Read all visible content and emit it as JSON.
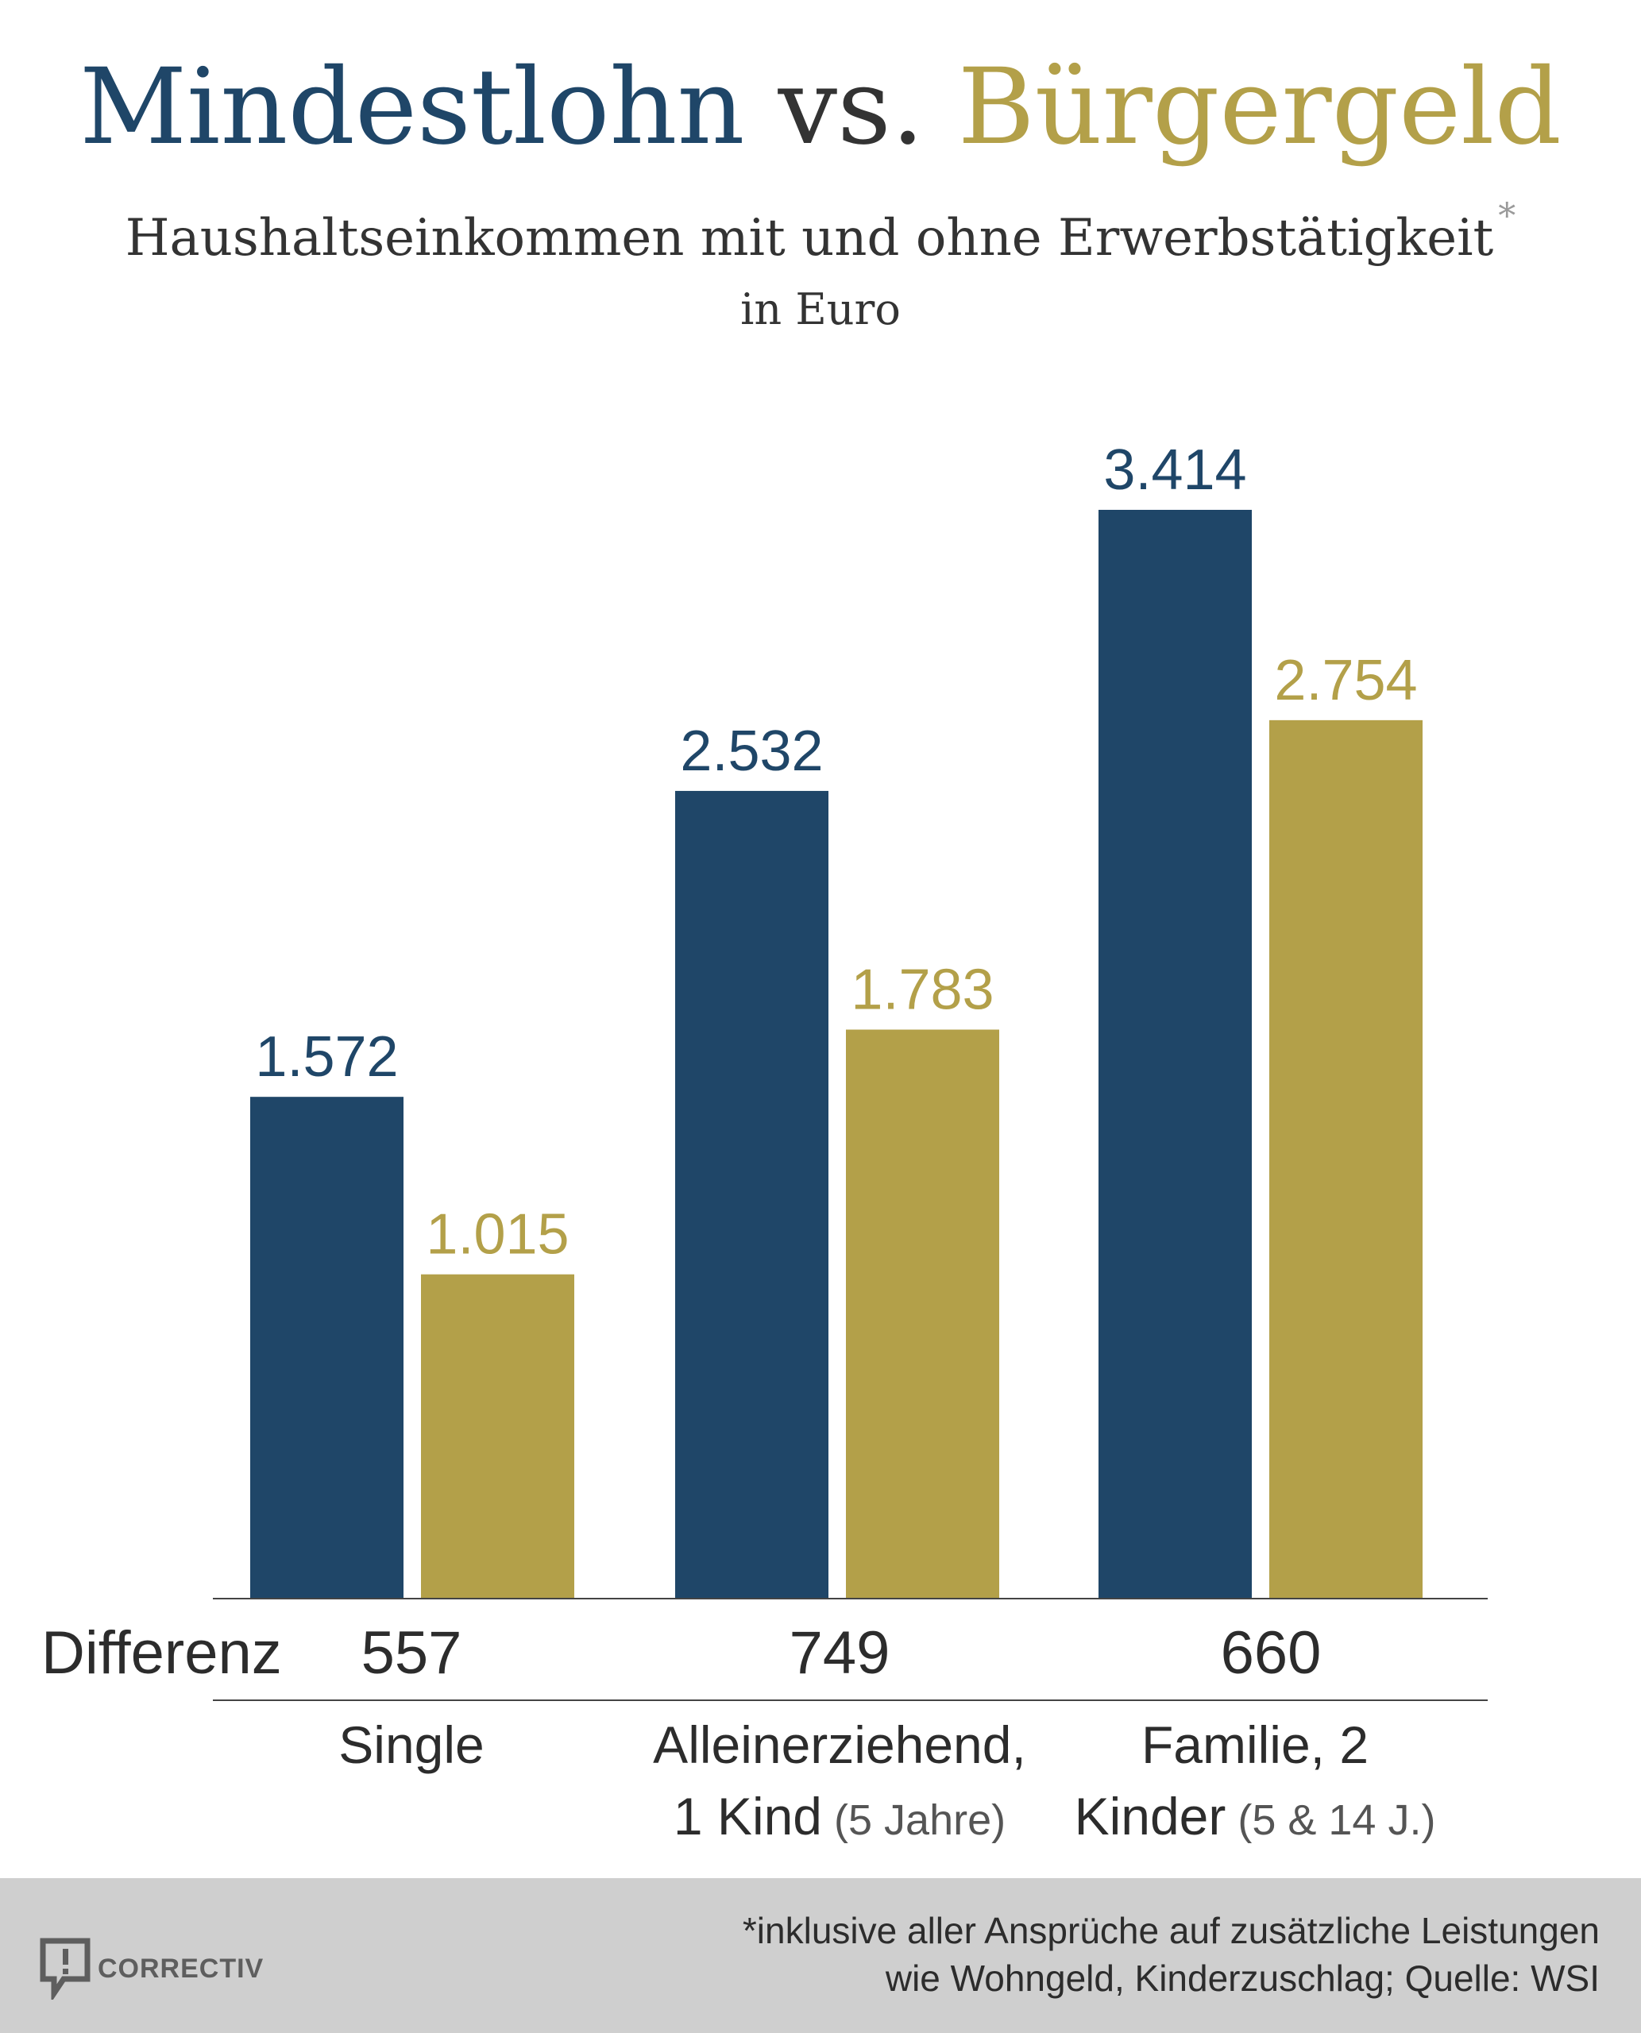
{
  "header": {
    "title_part1": "Mindestlohn",
    "title_part2": "vs.",
    "title_part3": "Bürgergeld",
    "subtitle": "Haushaltseinkommen mit und ohne Erwerbstätigkeit",
    "subtitle_mark": "*",
    "unit": "in Euro"
  },
  "colors": {
    "mindestlohn": "#1f4668",
    "buergergeld": "#b3a049",
    "text": "#333333",
    "footer_bg": "#cfcfcf"
  },
  "chart_data": {
    "type": "bar",
    "title": "Mindestlohn vs. Bürgergeld",
    "subtitle": "Haushaltseinkommen mit und ohne Erwerbstätigkeit",
    "ylabel": "in Euro",
    "ylim": [
      0,
      3414
    ],
    "grid": false,
    "categories": [
      {
        "main_line1": "Single",
        "main_line2": "",
        "note": ""
      },
      {
        "main_line1": "Alleinerziehend,",
        "main_line2": "1 Kind",
        "note": "(5 Jahre)"
      },
      {
        "main_line1": "Familie, 2",
        "main_line2": "Kinder",
        "note": "(5 & 14 J.)"
      }
    ],
    "series": [
      {
        "name": "Mindestlohn",
        "values": [
          1572,
          2532,
          3414
        ],
        "labels": [
          "1.572",
          "2.532",
          "3.414"
        ]
      },
      {
        "name": "Bürgergeld",
        "values": [
          1015,
          1783,
          2754
        ],
        "labels": [
          "1.015",
          "1.783",
          "2.754"
        ]
      }
    ],
    "difference_label": "Differenz",
    "differences": [
      "557",
      "749",
      "660"
    ]
  },
  "footer": {
    "logo_text": "CORRECTIV",
    "logo_icon": "speech-bubble-exclamation-icon",
    "note_line1": "*inklusive aller Ansprüche auf zusätzliche Leistungen",
    "note_line2": "wie Wohngeld, Kinderzuschlag; Quelle: WSI"
  }
}
